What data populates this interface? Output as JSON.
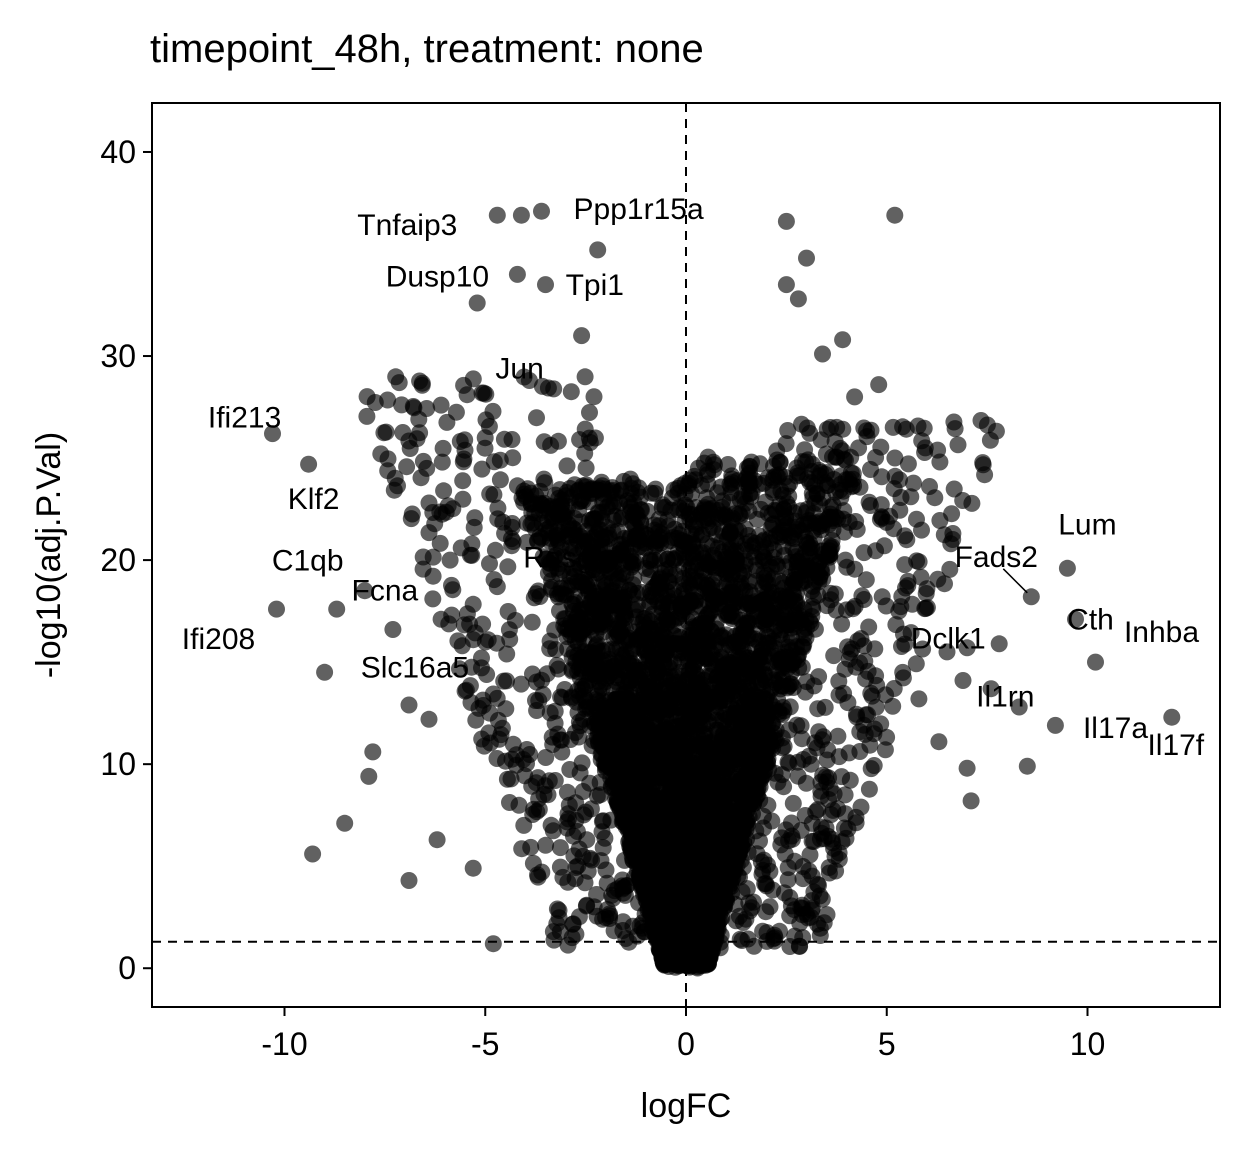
{
  "chart_data": {
    "type": "scatter",
    "title": "timepoint_48h, treatment: none",
    "xlabel": "logFC",
    "ylabel": "-log10(adj.P.Val)",
    "xlim": [
      -13.3,
      13.3
    ],
    "ylim": [
      -1.9,
      42.4
    ],
    "xticks": [
      -10,
      -5,
      0,
      5,
      10
    ],
    "xtick_labels": [
      "-10",
      "-5",
      "0",
      "5",
      "10"
    ],
    "yticks": [
      0,
      10,
      20,
      30,
      40
    ],
    "ytick_labels": [
      "0",
      "10",
      "20",
      "30",
      "40"
    ],
    "grid": false,
    "legend": "none",
    "point_color": "#000000",
    "point_alpha": 0.62,
    "reference_lines": {
      "vertical_x": 0,
      "horizontal_y": 1.3
    },
    "labeled_points": [
      {
        "label": "Tnfaip3",
        "x": -4.7,
        "y": 36.9
      },
      {
        "label": "Ppp1r15a",
        "x": -2.8,
        "y": 36.9
      },
      {
        "label": "Tpi1",
        "x": 5.2,
        "y": 36.9
      },
      {
        "label": "Dusp10",
        "x": -4.2,
        "y": 34.0
      },
      {
        "label": "Jun",
        "x": -2.9,
        "y": 29.1
      },
      {
        "label": "Ifi213",
        "x": -9.5,
        "y": 26.1
      },
      {
        "label": "Klf2",
        "x": -9.4,
        "y": 24.7
      },
      {
        "label": "Rasgrp",
        "x": -2.6,
        "y": 21.2
      },
      {
        "label": "C1qb",
        "x": -8.8,
        "y": 19.0
      },
      {
        "label": "Fcna",
        "x": -7.5,
        "y": 19.0
      },
      {
        "label": "Ifi208",
        "x": -10.2,
        "y": 17.6
      },
      {
        "label": "Slc16a5",
        "x": -7.0,
        "y": 16.2
      },
      {
        "label": "Fads2",
        "x": 8.6,
        "y": 18.2
      },
      {
        "label": "Lum",
        "x": 9.5,
        "y": 19.6
      },
      {
        "label": "Dclk1",
        "x": 7.9,
        "y": 16.8
      },
      {
        "label": "Cth",
        "x": 9.7,
        "y": 17.1
      },
      {
        "label": "Il1rn",
        "x": 8.7,
        "y": 14.3
      },
      {
        "label": "Inhba",
        "x": 10.3,
        "y": 15.2
      },
      {
        "label": "Il17a",
        "x": 10.2,
        "y": 15.0
      },
      {
        "label": "Il17f",
        "x": 12.1,
        "y": 12.3
      }
    ],
    "outlier_points": [
      {
        "x": -10.3,
        "y": 26.2
      },
      {
        "x": -9.4,
        "y": 24.7
      },
      {
        "x": -10.2,
        "y": 17.6
      },
      {
        "x": -9.0,
        "y": 14.5
      },
      {
        "x": -9.3,
        "y": 5.6
      },
      {
        "x": -8.5,
        "y": 7.1
      },
      {
        "x": -6.9,
        "y": 4.3
      },
      {
        "x": -7.8,
        "y": 10.6
      },
      {
        "x": -7.9,
        "y": 9.4
      },
      {
        "x": -6.4,
        "y": 22.8
      },
      {
        "x": -5.6,
        "y": 20.6
      },
      {
        "x": -5.0,
        "y": 26.0
      },
      {
        "x": -5.2,
        "y": 32.6
      },
      {
        "x": -4.7,
        "y": 36.9
      },
      {
        "x": -4.1,
        "y": 36.9
      },
      {
        "x": -3.6,
        "y": 37.1
      },
      {
        "x": -4.2,
        "y": 34.0
      },
      {
        "x": -2.2,
        "y": 35.2
      },
      {
        "x": -3.5,
        "y": 33.5
      },
      {
        "x": 2.5,
        "y": 36.6
      },
      {
        "x": 3.0,
        "y": 34.8
      },
      {
        "x": 5.2,
        "y": 36.9
      },
      {
        "x": 2.5,
        "y": 33.5
      },
      {
        "x": 2.8,
        "y": 32.8
      },
      {
        "x": 3.9,
        "y": 30.8
      },
      {
        "x": 3.4,
        "y": 30.1
      },
      {
        "x": 4.8,
        "y": 28.6
      },
      {
        "x": 4.2,
        "y": 28.0
      },
      {
        "x": 5.6,
        "y": 23.1
      },
      {
        "x": 6.0,
        "y": 18.6
      },
      {
        "x": 7.0,
        "y": 15.7
      },
      {
        "x": 7.8,
        "y": 15.9
      },
      {
        "x": 8.6,
        "y": 18.2
      },
      {
        "x": 9.5,
        "y": 19.6
      },
      {
        "x": 9.7,
        "y": 17.1
      },
      {
        "x": 10.2,
        "y": 15.0
      },
      {
        "x": 12.1,
        "y": 12.3
      },
      {
        "x": 9.2,
        "y": 11.9
      },
      {
        "x": 8.5,
        "y": 9.9
      },
      {
        "x": 7.0,
        "y": 9.8
      },
      {
        "x": 7.1,
        "y": 8.2
      },
      {
        "x": -4.8,
        "y": 1.2
      },
      {
        "x": -6.2,
        "y": 6.3
      },
      {
        "x": -5.3,
        "y": 4.9
      },
      {
        "x": -8.7,
        "y": 17.6
      },
      {
        "x": -8.0,
        "y": 18.5
      },
      {
        "x": -7.3,
        "y": 16.6
      },
      {
        "x": -6.1,
        "y": 17.1
      },
      {
        "x": -6.9,
        "y": 12.9
      },
      {
        "x": -6.4,
        "y": 12.2
      },
      {
        "x": -5.3,
        "y": 16.1
      },
      {
        "x": -4.7,
        "y": 18.7
      },
      {
        "x": 6.5,
        "y": 15.5
      },
      {
        "x": 6.9,
        "y": 14.1
      },
      {
        "x": 7.6,
        "y": 13.7
      },
      {
        "x": 8.3,
        "y": 12.8
      },
      {
        "x": 5.3,
        "y": 17.5
      },
      {
        "x": 5.8,
        "y": 13.2
      },
      {
        "x": 6.3,
        "y": 11.1
      },
      {
        "x": 5.5,
        "y": 21.0
      },
      {
        "x": 4.3,
        "y": 25.5
      },
      {
        "x": 3.6,
        "y": 26.5
      },
      {
        "x": -3.9,
        "y": 28.8
      },
      {
        "x": -2.6,
        "y": 31.0
      }
    ]
  }
}
